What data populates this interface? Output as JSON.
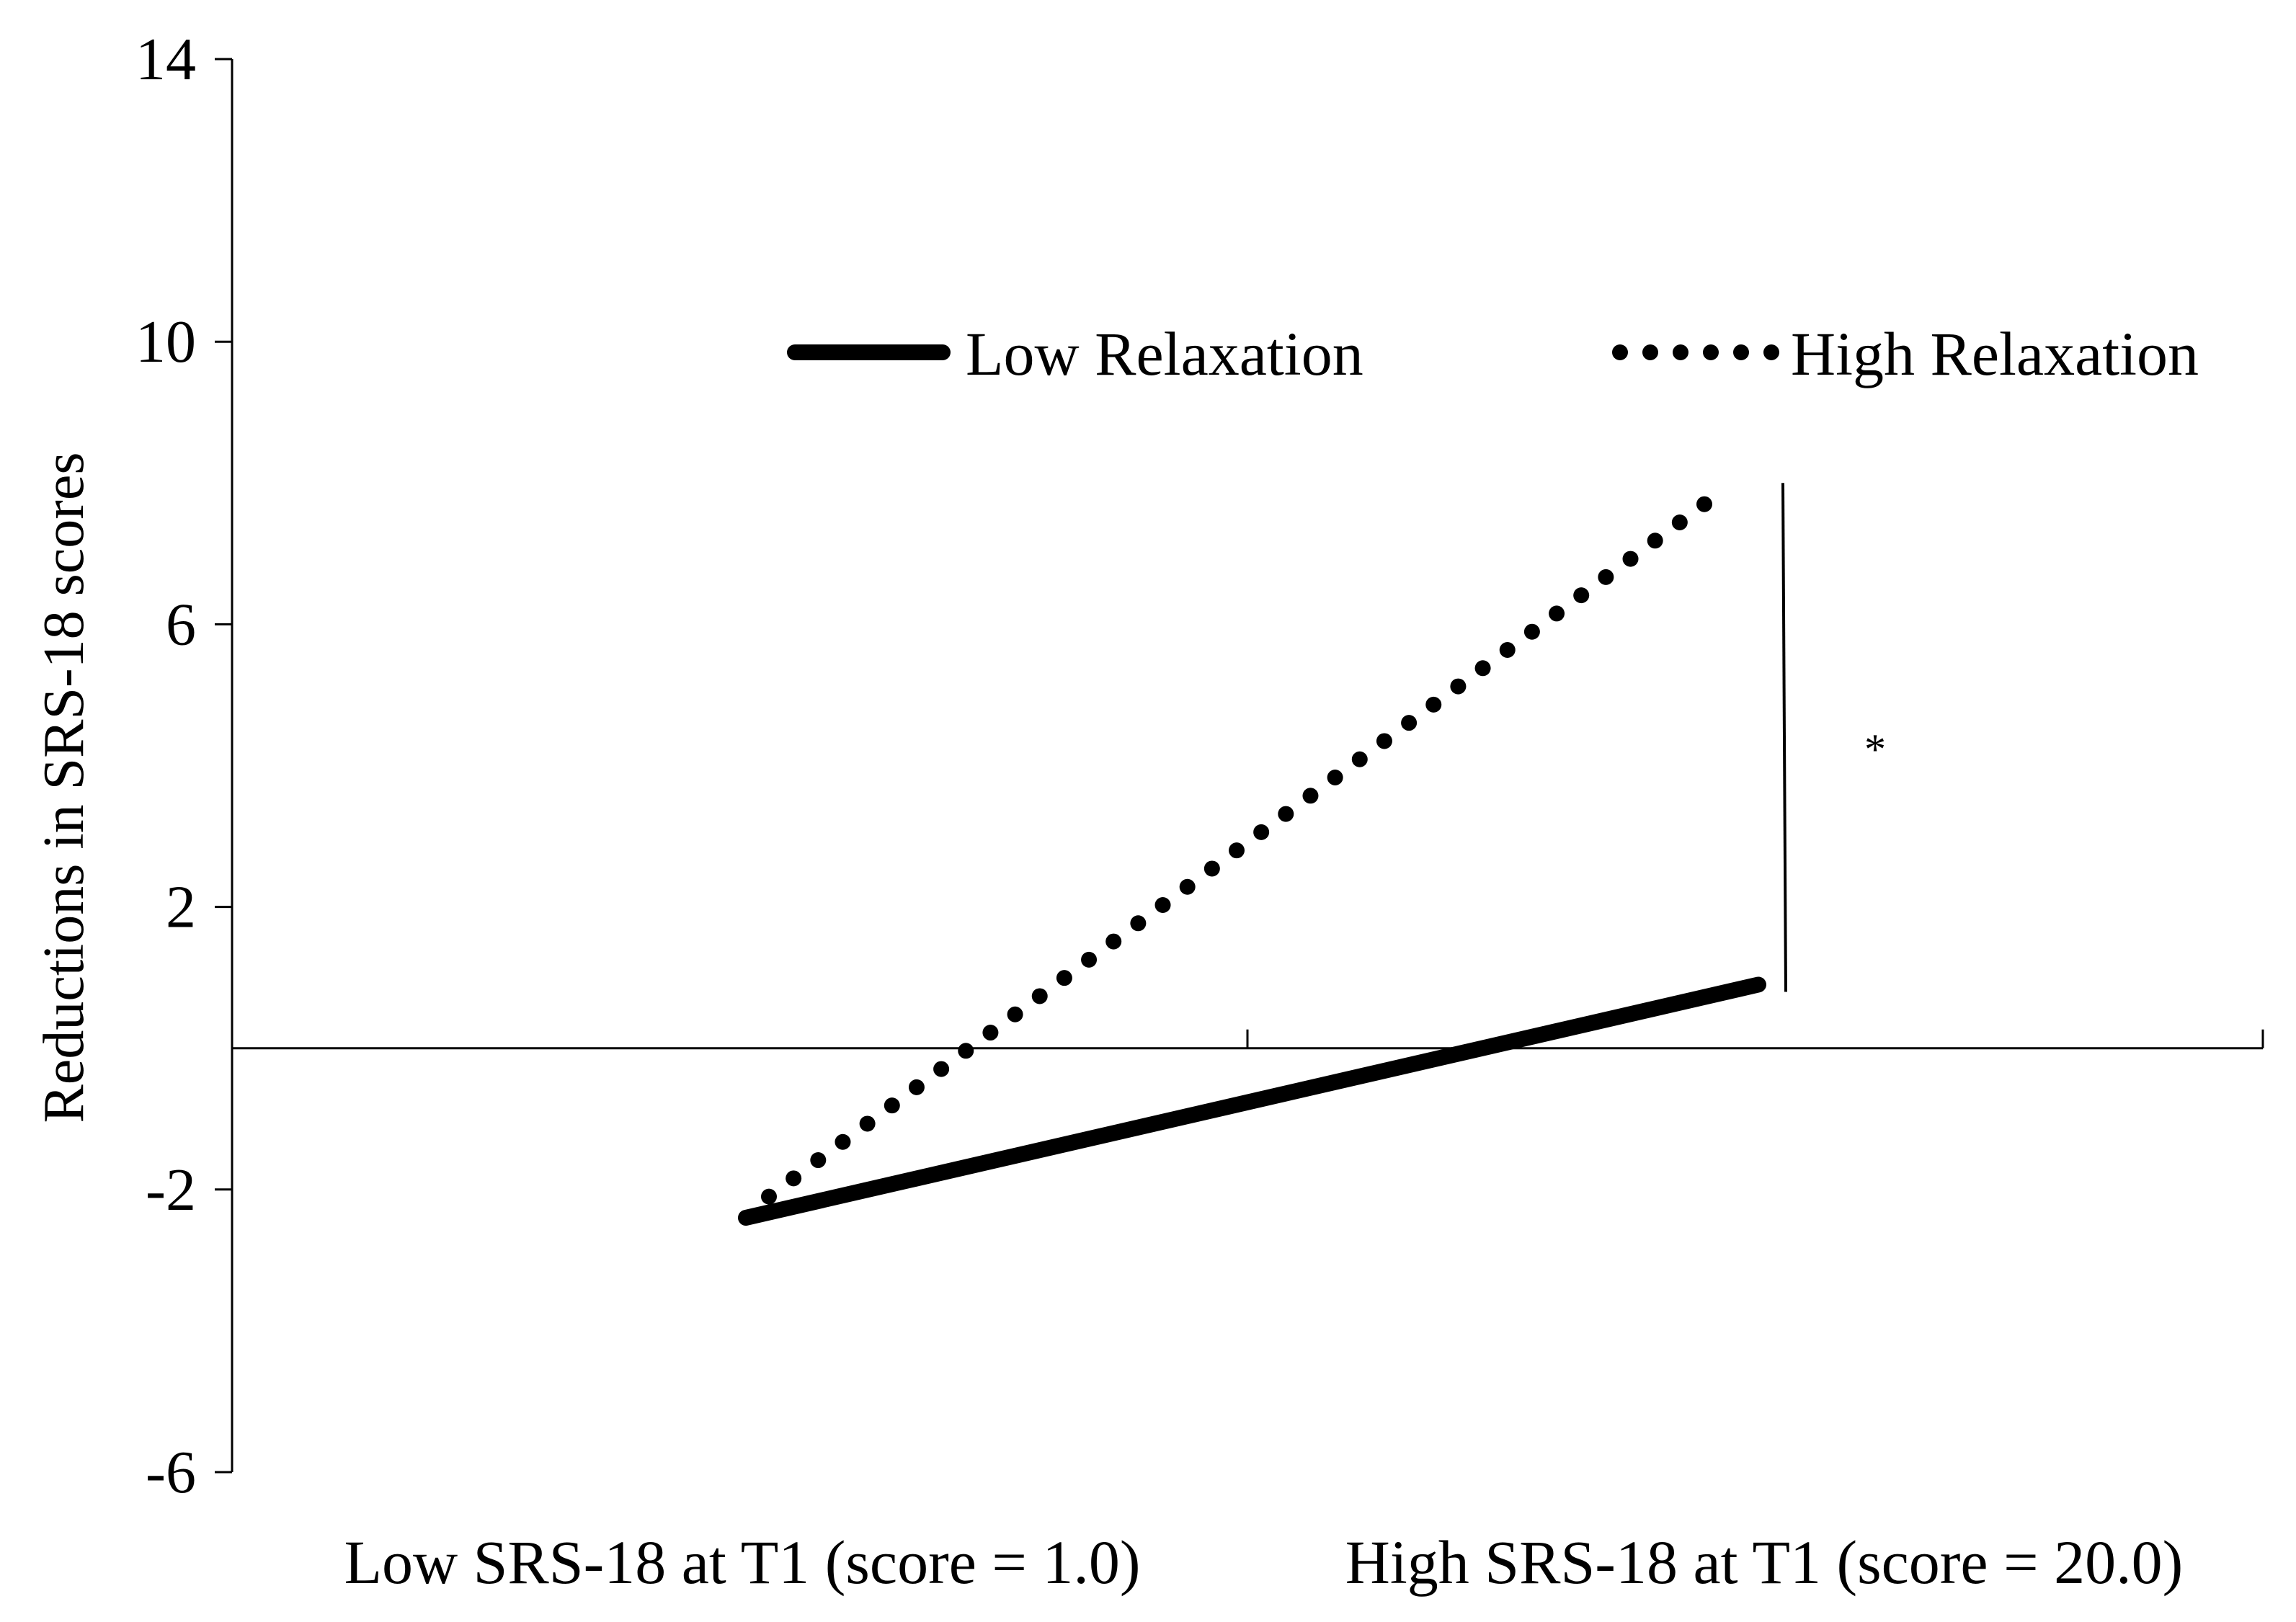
{
  "chart_data": {
    "type": "line",
    "title": "",
    "ylabel": "Reductions in SRS-18 scores",
    "xlabel": "",
    "ylim": [
      -6,
      14
    ],
    "yticks": [
      14,
      10,
      6,
      2,
      -2,
      -6
    ],
    "ytick_labels": [
      "14",
      "10",
      "6",
      "2",
      "-2",
      "-6"
    ],
    "categories": [
      "Low SRS-18 at T1 (score = 1.0)",
      "High SRS-18 at T1 (score = 20.0)"
    ],
    "series": [
      {
        "name": "Low Relaxation",
        "style": "solid",
        "values": [
          -2.4,
          0.9
        ]
      },
      {
        "name": "High Relaxation",
        "style": "dotted",
        "values": [
          -2.1,
          7.7
        ]
      }
    ],
    "annotation": {
      "text": "*",
      "y_range": [
        0.9,
        8.0
      ]
    },
    "legend": "top-right",
    "grid": false,
    "colors": {
      "line": "#000000",
      "background": "#ffffff"
    }
  }
}
